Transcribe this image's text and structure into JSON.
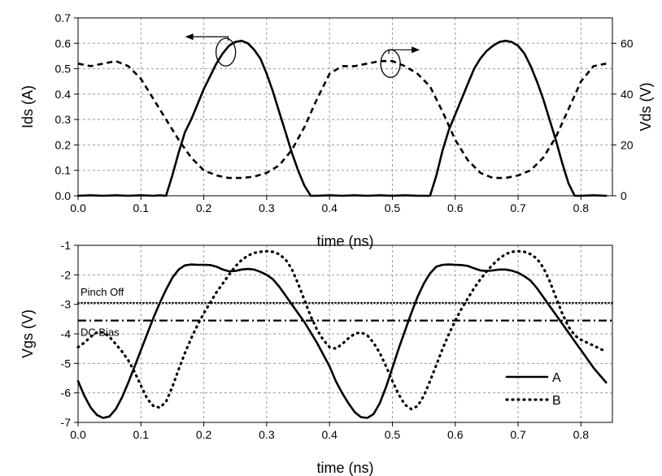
{
  "chart_data": [
    {
      "type": "line",
      "xlabel": "time (ns)",
      "ylabel": "Ids (A)",
      "y2label": "Vds (V)",
      "xlim": [
        0.0,
        0.85
      ],
      "ylim": [
        0.0,
        0.7
      ],
      "y2lim": [
        0,
        70
      ],
      "x_ticks": [
        "0.0",
        "0.1",
        "0.2",
        "0.3",
        "0.4",
        "0.5",
        "0.6",
        "0.7",
        "0.8"
      ],
      "y_ticks": [
        "0.0",
        "0.1",
        "0.2",
        "0.3",
        "0.4",
        "0.5",
        "0.6",
        "0.7"
      ],
      "y2_ticks": [
        "0",
        "20",
        "40",
        "60"
      ],
      "grid": true,
      "series": [
        {
          "axis": "left",
          "style": "solid",
          "x": [
            0.0,
            0.02,
            0.04,
            0.06,
            0.08,
            0.1,
            0.12,
            0.13,
            0.14,
            0.15,
            0.16,
            0.17,
            0.18,
            0.19,
            0.2,
            0.21,
            0.22,
            0.23,
            0.24,
            0.25,
            0.26,
            0.27,
            0.28,
            0.29,
            0.3,
            0.31,
            0.32,
            0.33,
            0.34,
            0.35,
            0.36,
            0.37,
            0.38,
            0.4,
            0.42,
            0.44,
            0.46,
            0.48,
            0.5,
            0.52,
            0.54,
            0.55,
            0.56,
            0.57,
            0.58,
            0.59,
            0.6,
            0.61,
            0.62,
            0.63,
            0.64,
            0.65,
            0.66,
            0.67,
            0.68,
            0.69,
            0.7,
            0.71,
            0.72,
            0.73,
            0.74,
            0.75,
            0.76,
            0.77,
            0.78,
            0.79,
            0.8,
            0.82,
            0.84
          ],
          "y": [
            0.0,
            0.002,
            0.0,
            0.002,
            0.0,
            0.002,
            0.0,
            0.002,
            0.0,
            0.08,
            0.17,
            0.25,
            0.3,
            0.36,
            0.42,
            0.47,
            0.52,
            0.56,
            0.59,
            0.605,
            0.61,
            0.6,
            0.575,
            0.54,
            0.48,
            0.41,
            0.33,
            0.25,
            0.17,
            0.1,
            0.04,
            0.0,
            0.0,
            0.002,
            0.0,
            0.002,
            0.0,
            0.002,
            0.0,
            0.002,
            0.0,
            0.0,
            0.0,
            0.08,
            0.18,
            0.26,
            0.32,
            0.38,
            0.44,
            0.5,
            0.54,
            0.57,
            0.59,
            0.605,
            0.61,
            0.605,
            0.59,
            0.56,
            0.51,
            0.45,
            0.38,
            0.3,
            0.22,
            0.13,
            0.05,
            0.0,
            0.0,
            0.002,
            0.0
          ]
        },
        {
          "axis": "right",
          "style": "dashed",
          "x": [
            0.0,
            0.02,
            0.04,
            0.06,
            0.08,
            0.1,
            0.12,
            0.14,
            0.16,
            0.18,
            0.2,
            0.22,
            0.24,
            0.26,
            0.28,
            0.3,
            0.32,
            0.34,
            0.36,
            0.38,
            0.4,
            0.42,
            0.44,
            0.46,
            0.48,
            0.5,
            0.52,
            0.54,
            0.56,
            0.58,
            0.6,
            0.62,
            0.64,
            0.66,
            0.68,
            0.7,
            0.72,
            0.74,
            0.76,
            0.78,
            0.8,
            0.82,
            0.84
          ],
          "y": [
            52,
            51,
            52,
            53,
            51,
            46,
            38,
            30,
            22,
            15,
            10,
            8,
            7,
            7,
            7.5,
            9,
            12,
            18,
            27,
            38,
            48,
            51,
            51,
            52,
            53,
            53,
            51,
            48,
            43,
            33,
            22,
            14,
            9,
            7,
            7,
            8,
            10,
            15,
            23,
            34,
            45,
            51,
            52
          ]
        }
      ],
      "annotations": [
        {
          "type": "circle-arrow",
          "points_to": "left axis",
          "x": 0.235,
          "y": 0.565
        },
        {
          "type": "circle-arrow",
          "points_to": "right axis",
          "x": 0.497,
          "y": 0.52
        }
      ]
    },
    {
      "type": "line",
      "xlabel": "time (ns)",
      "ylabel": "Vgs (V)",
      "xlim": [
        0.0,
        0.85
      ],
      "ylim": [
        -7,
        -1
      ],
      "x_ticks": [
        "0.0",
        "0.1",
        "0.2",
        "0.3",
        "0.4",
        "0.5",
        "0.6",
        "0.7",
        "0.8"
      ],
      "y_ticks": [
        "-1",
        "-2",
        "-3",
        "-4",
        "-5",
        "-6",
        "-7"
      ],
      "grid": true,
      "legend": "bottom-right",
      "series": [
        {
          "name": "A",
          "style": "solid",
          "x": [
            0.0,
            0.01,
            0.02,
            0.03,
            0.04,
            0.05,
            0.06,
            0.07,
            0.08,
            0.09,
            0.1,
            0.11,
            0.12,
            0.13,
            0.14,
            0.15,
            0.16,
            0.17,
            0.18,
            0.19,
            0.2,
            0.21,
            0.22,
            0.23,
            0.24,
            0.25,
            0.26,
            0.27,
            0.28,
            0.29,
            0.3,
            0.31,
            0.32,
            0.33,
            0.34,
            0.35,
            0.36,
            0.37,
            0.38,
            0.39,
            0.4,
            0.41,
            0.42,
            0.43,
            0.44,
            0.45,
            0.46,
            0.47,
            0.48,
            0.49,
            0.5,
            0.51,
            0.52,
            0.53,
            0.54,
            0.55,
            0.56,
            0.57,
            0.58,
            0.59,
            0.6,
            0.61,
            0.62,
            0.63,
            0.64,
            0.65,
            0.66,
            0.67,
            0.68,
            0.69,
            0.7,
            0.71,
            0.72,
            0.73,
            0.74,
            0.75,
            0.76,
            0.77,
            0.78,
            0.79,
            0.8,
            0.81,
            0.82,
            0.83,
            0.84
          ],
          "y": [
            -5.6,
            -6.1,
            -6.5,
            -6.75,
            -6.85,
            -6.8,
            -6.55,
            -6.15,
            -5.65,
            -5.1,
            -4.55,
            -4.0,
            -3.45,
            -2.95,
            -2.5,
            -2.1,
            -1.82,
            -1.68,
            -1.65,
            -1.66,
            -1.66,
            -1.67,
            -1.72,
            -1.82,
            -1.88,
            -1.87,
            -1.82,
            -1.8,
            -1.82,
            -1.9,
            -2.0,
            -2.15,
            -2.4,
            -2.7,
            -3.0,
            -3.3,
            -3.6,
            -3.95,
            -4.3,
            -4.7,
            -5.1,
            -5.6,
            -6.0,
            -6.35,
            -6.65,
            -6.82,
            -6.85,
            -6.72,
            -6.35,
            -5.8,
            -5.15,
            -4.5,
            -3.9,
            -3.3,
            -2.75,
            -2.3,
            -1.95,
            -1.72,
            -1.66,
            -1.65,
            -1.66,
            -1.67,
            -1.7,
            -1.78,
            -1.85,
            -1.87,
            -1.85,
            -1.82,
            -1.82,
            -1.86,
            -1.93,
            -2.05,
            -2.2,
            -2.45,
            -2.75,
            -3.05,
            -3.35,
            -3.65,
            -3.95,
            -4.25,
            -4.55,
            -4.85,
            -5.15,
            -5.4,
            -5.65
          ]
        },
        {
          "name": "B",
          "style": "dotted",
          "x": [
            0.0,
            0.01,
            0.02,
            0.03,
            0.04,
            0.05,
            0.06,
            0.07,
            0.08,
            0.09,
            0.1,
            0.11,
            0.12,
            0.13,
            0.14,
            0.15,
            0.16,
            0.17,
            0.18,
            0.19,
            0.2,
            0.21,
            0.22,
            0.23,
            0.24,
            0.25,
            0.26,
            0.27,
            0.28,
            0.29,
            0.3,
            0.31,
            0.32,
            0.33,
            0.34,
            0.35,
            0.36,
            0.37,
            0.38,
            0.39,
            0.4,
            0.41,
            0.42,
            0.43,
            0.44,
            0.45,
            0.46,
            0.47,
            0.48,
            0.49,
            0.5,
            0.51,
            0.52,
            0.53,
            0.54,
            0.55,
            0.56,
            0.57,
            0.58,
            0.59,
            0.6,
            0.61,
            0.62,
            0.63,
            0.64,
            0.65,
            0.66,
            0.67,
            0.68,
            0.69,
            0.7,
            0.71,
            0.72,
            0.73,
            0.74,
            0.75,
            0.76,
            0.77,
            0.78,
            0.79,
            0.8,
            0.81,
            0.82,
            0.83,
            0.84
          ],
          "y": [
            -4.45,
            -4.3,
            -4.1,
            -3.95,
            -3.95,
            -4.1,
            -4.35,
            -4.6,
            -4.9,
            -5.3,
            -5.75,
            -6.2,
            -6.45,
            -6.5,
            -6.3,
            -5.8,
            -5.2,
            -4.65,
            -4.15,
            -3.7,
            -3.3,
            -2.95,
            -2.6,
            -2.3,
            -2.0,
            -1.72,
            -1.5,
            -1.35,
            -1.26,
            -1.22,
            -1.2,
            -1.22,
            -1.3,
            -1.48,
            -1.8,
            -2.3,
            -2.85,
            -3.4,
            -3.85,
            -4.2,
            -4.45,
            -4.5,
            -4.35,
            -4.15,
            -4.0,
            -3.95,
            -4.05,
            -4.3,
            -4.65,
            -5.1,
            -5.6,
            -6.05,
            -6.4,
            -6.55,
            -6.45,
            -6.1,
            -5.6,
            -5.05,
            -4.5,
            -4.0,
            -3.55,
            -3.15,
            -2.8,
            -2.45,
            -2.15,
            -1.88,
            -1.65,
            -1.45,
            -1.3,
            -1.22,
            -1.2,
            -1.22,
            -1.3,
            -1.45,
            -1.75,
            -2.2,
            -2.75,
            -3.3,
            -3.75,
            -4.05,
            -4.2,
            -4.3,
            -4.4,
            -4.5,
            -4.6
          ]
        }
      ],
      "reference_lines": [
        {
          "label": "Pinch Off",
          "y": -2.95,
          "style": "dotted"
        },
        {
          "label": "DC Bias",
          "y": -3.55,
          "style": "dash-dot"
        }
      ]
    }
  ]
}
